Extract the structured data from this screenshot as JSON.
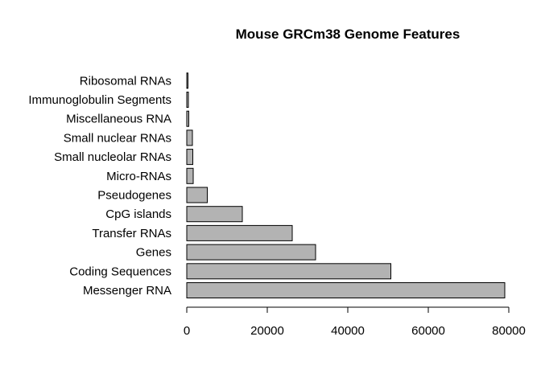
{
  "chart_data": {
    "type": "bar",
    "orientation": "horizontal",
    "title": "Mouse GRCm38 Genome Features",
    "xlabel": "",
    "ylabel": "",
    "categories": [
      "Messenger RNA",
      "Coding Sequences",
      "Genes",
      "Transfer RNAs",
      "CpG islands",
      "Pseudogenes",
      "Micro-RNAs",
      "Small nucleolar RNAs",
      "Small nuclear RNAs",
      "Miscellaneous RNA",
      "Immunoglobulin Segments",
      "Ribosomal RNAs"
    ],
    "values": [
      79000,
      50700,
      32000,
      26200,
      13800,
      5100,
      1600,
      1500,
      1400,
      500,
      400,
      300
    ],
    "xlim": [
      0,
      80000
    ],
    "xticks": [
      0,
      20000,
      40000,
      60000,
      80000
    ],
    "xtick_labels": [
      "0",
      "20000",
      "40000",
      "60000",
      "80000"
    ],
    "bar_color": "#b3b3b3",
    "bar_edge_color": "#000000",
    "grid": false,
    "legend": "none"
  }
}
